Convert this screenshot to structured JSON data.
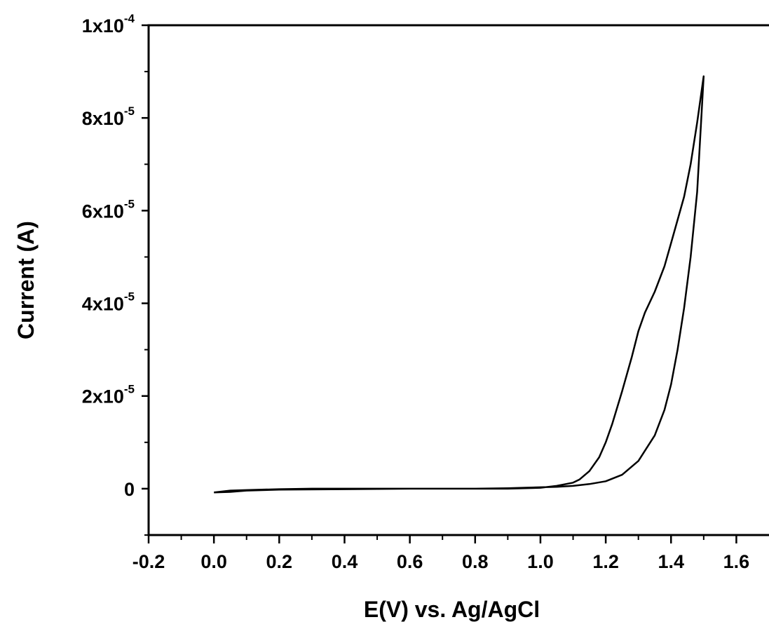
{
  "chart_data": {
    "type": "line",
    "title": "",
    "xlabel": "E(V) vs. Ag/AgCl",
    "ylabel": "Current (A)",
    "xlim": [
      -0.2,
      1.7
    ],
    "ylim": [
      -1e-05,
      0.0001
    ],
    "x_ticks": [
      {
        "value": -0.2,
        "label": "-0.2"
      },
      {
        "value": 0.0,
        "label": "0.0"
      },
      {
        "value": 0.2,
        "label": "0.2"
      },
      {
        "value": 0.4,
        "label": "0.4"
      },
      {
        "value": 0.6,
        "label": "0.6"
      },
      {
        "value": 0.8,
        "label": "0.8"
      },
      {
        "value": 1.0,
        "label": "1.0"
      },
      {
        "value": 1.2,
        "label": "1.2"
      },
      {
        "value": 1.4,
        "label": "1.4"
      },
      {
        "value": 1.6,
        "label": "1.6"
      }
    ],
    "y_ticks": [
      {
        "value": 0,
        "mantissa": "0",
        "exponent": ""
      },
      {
        "value": 2e-05,
        "mantissa": "2x10",
        "exponent": "-5"
      },
      {
        "value": 4e-05,
        "mantissa": "4x10",
        "exponent": "-5"
      },
      {
        "value": 6e-05,
        "mantissa": "6x10",
        "exponent": "-5"
      },
      {
        "value": 8e-05,
        "mantissa": "8x10",
        "exponent": "-5"
      },
      {
        "value": 0.0001,
        "mantissa": "1x10",
        "exponent": "-4"
      }
    ],
    "grid": false,
    "legend": "none",
    "line_color": "#000000",
    "series": [
      {
        "x": [
          0.0,
          0.05,
          0.1,
          0.2,
          0.3,
          0.4,
          0.5,
          0.6,
          0.7,
          0.8,
          0.9,
          1.0,
          1.05,
          1.1,
          1.15,
          1.2,
          1.25,
          1.3,
          1.35,
          1.38,
          1.4,
          1.42,
          1.44,
          1.46,
          1.48,
          1.5,
          1.5,
          1.48,
          1.46,
          1.44,
          1.42,
          1.4,
          1.38,
          1.35,
          1.32,
          1.3,
          1.28,
          1.25,
          1.22,
          1.2,
          1.18,
          1.15,
          1.12,
          1.1,
          1.05,
          1.0,
          0.9,
          0.8,
          0.6,
          0.4,
          0.2,
          0.1,
          0.05,
          0.0
        ],
        "y": [
          -8e-07,
          -4e-07,
          -3e-07,
          -1e-07,
          0,
          0,
          0,
          0,
          0,
          0,
          1e-07,
          3e-07,
          4e-07,
          6e-07,
          1e-06,
          1.6e-06,
          3e-06,
          6e-06,
          1.15e-05,
          1.7e-05,
          2.25e-05,
          3e-05,
          3.9e-05,
          5e-05,
          6.4e-05,
          8.9e-05,
          8.9e-05,
          7.9e-05,
          7e-05,
          6.3e-05,
          5.8e-05,
          5.3e-05,
          4.8e-05,
          4.25e-05,
          3.8e-05,
          3.4e-05,
          2.85e-05,
          2.1e-05,
          1.4e-05,
          1e-05,
          6.8e-06,
          3.8e-06,
          2e-06,
          1.3e-06,
          6e-07,
          2e-07,
          0,
          0,
          0,
          -1e-07,
          -2e-07,
          -4e-07,
          -7e-07,
          -8e-07
        ]
      }
    ]
  }
}
